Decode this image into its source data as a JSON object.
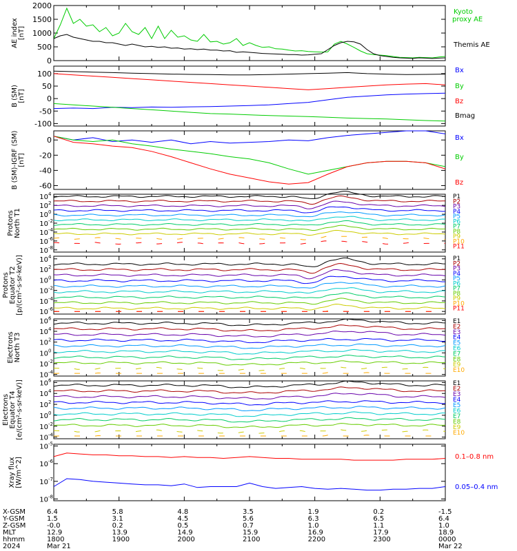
{
  "colors": {
    "black": "#000000",
    "red": "#ff0000",
    "green": "#00cc00",
    "blue": "#0000ff",
    "p_levels": [
      "#000000",
      "#aa0000",
      "#6600aa",
      "#0000ff",
      "#0099ff",
      "#00cccc",
      "#00cc66",
      "#66cc00",
      "#cccc00",
      "#ffaa00",
      "#ff0000"
    ]
  },
  "chart_data": [
    {
      "type": "line",
      "panel": "ae",
      "ylabel": "AE index [nT]",
      "ylim": [
        0,
        2000
      ],
      "yticks": [
        "0",
        "500",
        "1000",
        "1500",
        "2000"
      ],
      "yticks_values": [
        0,
        500,
        1000,
        1500,
        2000
      ],
      "x": [
        18.0,
        18.1,
        18.2,
        18.3,
        18.4,
        18.5,
        18.6,
        18.7,
        18.8,
        18.9,
        19.0,
        19.1,
        19.2,
        19.3,
        19.4,
        19.5,
        19.6,
        19.7,
        19.8,
        19.9,
        20.0,
        20.1,
        20.2,
        20.3,
        20.4,
        20.5,
        20.6,
        20.7,
        20.8,
        20.9,
        21.0,
        21.1,
        21.2,
        21.3,
        21.4,
        21.5,
        21.6,
        21.7,
        21.8,
        21.9,
        22.0,
        22.1,
        22.2,
        22.3,
        22.4,
        22.5,
        22.6,
        22.7,
        22.8,
        22.9,
        23.0,
        23.1,
        23.2,
        23.3,
        23.4,
        23.5,
        23.6,
        23.7,
        23.8,
        23.9,
        24.0
      ],
      "series": [
        {
          "name": "Kyoto proxy AE",
          "color": "#00cc00",
          "values": [
            800,
            1300,
            1900,
            1350,
            1500,
            1250,
            1300,
            1050,
            1200,
            900,
            1000,
            1350,
            1050,
            950,
            1200,
            800,
            1250,
            800,
            1100,
            850,
            900,
            750,
            700,
            950,
            680,
            700,
            600,
            650,
            800,
            550,
            650,
            550,
            480,
            500,
            430,
            420,
            380,
            350,
            360,
            330,
            320,
            310,
            320,
            600,
            700,
            600,
            480,
            350,
            250,
            220,
            200,
            180,
            150,
            120,
            110,
            100,
            120,
            110,
            100,
            130,
            150
          ]
        },
        {
          "name": "Themis AE",
          "color": "#000000",
          "values": [
            800,
            900,
            950,
            850,
            800,
            750,
            700,
            700,
            650,
            650,
            600,
            550,
            600,
            550,
            500,
            520,
            480,
            500,
            450,
            460,
            420,
            430,
            400,
            420,
            380,
            380,
            350,
            360,
            300,
            320,
            300,
            280,
            260,
            250,
            240,
            230,
            220,
            220,
            200,
            210,
            230,
            250,
            400,
            550,
            650,
            700,
            680,
            600,
            400,
            250,
            180,
            150,
            120,
            100,
            90,
            80,
            100,
            90,
            80,
            90,
            100
          ]
        }
      ]
    },
    {
      "type": "line",
      "panel": "b_sm",
      "ylabel": "B (SM) [nT]",
      "ylim": [
        -110,
        130
      ],
      "yticks": [
        "-100",
        "-50",
        "0",
        "50",
        "100"
      ],
      "yticks_values": [
        -100,
        -50,
        0,
        50,
        100
      ],
      "x": [
        18.0,
        18.3,
        18.6,
        18.9,
        19.2,
        19.5,
        19.8,
        20.1,
        20.4,
        20.7,
        21.0,
        21.3,
        21.6,
        21.9,
        22.2,
        22.5,
        22.8,
        23.1,
        23.4,
        23.7,
        24.0
      ],
      "series": [
        {
          "name": "Bx",
          "color": "#0000ff",
          "values": [
            -40,
            -38,
            -40,
            -35,
            -36,
            -34,
            -35,
            -33,
            -32,
            -30,
            -28,
            -25,
            -20,
            -15,
            -5,
            5,
            10,
            15,
            18,
            20,
            22
          ]
        },
        {
          "name": "By",
          "color": "#00cc00",
          "values": [
            -20,
            -25,
            -30,
            -35,
            -40,
            -45,
            -50,
            -55,
            -60,
            -62,
            -65,
            -68,
            -70,
            -72,
            -75,
            -78,
            -80,
            -82,
            -85,
            -88,
            -90
          ]
        },
        {
          "name": "Bz",
          "color": "#ff0000",
          "values": [
            100,
            95,
            90,
            85,
            80,
            75,
            70,
            65,
            60,
            55,
            50,
            45,
            40,
            35,
            40,
            45,
            50,
            55,
            58,
            60,
            55
          ]
        },
        {
          "name": "Bmag",
          "color": "#000000",
          "values": [
            110,
            108,
            106,
            104,
            102,
            100,
            98,
            97,
            96,
            95,
            95,
            96,
            98,
            100,
            102,
            104,
            100,
            98,
            96,
            97,
            98
          ]
        }
      ]
    },
    {
      "type": "line",
      "panel": "b_igrf",
      "ylabel": "B (SM)-IGRF (SM) [nT]",
      "ylim": [
        -65,
        12
      ],
      "yticks": [
        "-60",
        "-40",
        "-20",
        "0"
      ],
      "yticks_values": [
        -60,
        -40,
        -20,
        0
      ],
      "x": [
        18.0,
        18.3,
        18.6,
        18.9,
        19.2,
        19.5,
        19.8,
        20.1,
        20.4,
        20.7,
        21.0,
        21.3,
        21.6,
        21.9,
        22.2,
        22.5,
        22.8,
        23.1,
        23.4,
        23.7,
        24.0
      ],
      "series": [
        {
          "name": "Bx",
          "color": "#0000ff",
          "values": [
            5,
            0,
            3,
            -2,
            0,
            -3,
            0,
            -5,
            -2,
            -4,
            -3,
            -2,
            0,
            -1,
            3,
            6,
            8,
            10,
            12,
            12,
            8
          ]
        },
        {
          "name": "By",
          "color": "#00cc00",
          "values": [
            5,
            0,
            -2,
            0,
            -5,
            -8,
            -12,
            -15,
            -18,
            -22,
            -25,
            -30,
            -38,
            -45,
            -40,
            -35,
            -30,
            -28,
            -28,
            -30,
            -35
          ]
        },
        {
          "name": "Bz",
          "color": "#ff0000",
          "values": [
            5,
            -3,
            -5,
            -8,
            -10,
            -15,
            -22,
            -30,
            -38,
            -45,
            -50,
            -55,
            -58,
            -56,
            -45,
            -35,
            -30,
            -28,
            -28,
            -30,
            -38
          ]
        }
      ]
    }
  ],
  "flux_panels": [
    {
      "id": "p1",
      "label_lines": [
        "Protons",
        "North T1"
      ],
      "ytick_exps": [
        4,
        2,
        0,
        -2,
        -4,
        -6,
        -8
      ],
      "ymax_exp": 4.5,
      "ymin_exp": -8.5,
      "levels": [
        "P1",
        "P2",
        "P3",
        "P4",
        "P5",
        "P6",
        "P7",
        "P8",
        "P9",
        "P10",
        "P11"
      ]
    },
    {
      "id": "p2",
      "label_lines": [
        "Protons",
        "Equator T2",
        "[p/(cm²-s-sr-keV)]"
      ],
      "ytick_exps": [
        4,
        2,
        0,
        -2,
        -4,
        -6
      ],
      "ymax_exp": 4.5,
      "ymin_exp": -6.5,
      "levels": [
        "P1",
        "P2",
        "P3",
        "P4",
        "P5",
        "P6",
        "P7",
        "P8",
        "P9",
        "P10",
        "P11"
      ]
    },
    {
      "id": "e1",
      "label_lines": [
        "Electrons",
        "North T3"
      ],
      "ytick_exps": [
        6,
        4,
        2,
        0,
        -2,
        -4
      ],
      "ymax_exp": 6.3,
      "ymin_exp": -4.3,
      "levels": [
        "E1",
        "E2",
        "E3",
        "E4",
        "E5",
        "E6",
        "E7",
        "E8",
        "E9",
        "E10"
      ]
    },
    {
      "id": "e2",
      "label_lines": [
        "Electrons",
        "Equator T4",
        "[e/(cm²-s-sr-keV)]"
      ],
      "ytick_exps": [
        6,
        4,
        2,
        0,
        -2,
        -4
      ],
      "ymax_exp": 6.3,
      "ymin_exp": -4.3,
      "levels": [
        "E1",
        "E2",
        "E3",
        "E4",
        "E5",
        "E6",
        "E7",
        "E8",
        "E9",
        "E10"
      ]
    }
  ],
  "xray": {
    "label_lines": [
      "Xray flux",
      "[W/m^2]"
    ],
    "ytick_exps": [
      -5,
      -6,
      -7,
      -8
    ],
    "series": [
      {
        "name": "0.1-0.8 nm",
        "color": "#ff0000",
        "x": [
          18.0,
          18.2,
          18.4,
          18.6,
          18.8,
          19.0,
          19.2,
          19.4,
          19.6,
          19.8,
          20.0,
          20.2,
          20.4,
          20.6,
          20.8,
          21.0,
          21.2,
          21.4,
          21.6,
          21.8,
          22.0,
          22.2,
          22.4,
          22.6,
          22.8,
          23.0,
          23.2,
          23.4,
          23.6,
          23.8,
          24.0
        ],
        "exp": [
          -5.6,
          -5.4,
          -5.45,
          -5.5,
          -5.5,
          -5.55,
          -5.55,
          -5.6,
          -5.6,
          -5.65,
          -5.6,
          -5.65,
          -5.65,
          -5.7,
          -5.65,
          -5.6,
          -5.65,
          -5.7,
          -5.7,
          -5.75,
          -5.75,
          -5.75,
          -5.75,
          -5.8,
          -5.8,
          -5.8,
          -5.8,
          -5.75,
          -5.75,
          -5.75,
          -5.7
        ]
      },
      {
        "name": "0.05-0.4 nm",
        "color": "#0000ff",
        "x": [
          18.0,
          18.2,
          18.4,
          18.6,
          18.8,
          19.0,
          19.2,
          19.4,
          19.6,
          19.8,
          20.0,
          20.2,
          20.4,
          20.6,
          20.8,
          21.0,
          21.2,
          21.4,
          21.6,
          21.8,
          22.0,
          22.2,
          22.4,
          22.6,
          22.8,
          23.0,
          23.2,
          23.4,
          23.6,
          23.8,
          24.0
        ],
        "exp": [
          -7.3,
          -6.85,
          -6.9,
          -7.0,
          -7.05,
          -7.1,
          -7.15,
          -7.2,
          -7.2,
          -7.25,
          -7.15,
          -7.35,
          -7.3,
          -7.3,
          -7.3,
          -7.1,
          -7.3,
          -7.4,
          -7.35,
          -7.3,
          -7.4,
          -7.45,
          -7.4,
          -7.45,
          -7.5,
          -7.5,
          -7.45,
          -7.45,
          -7.4,
          -7.4,
          -7.3
        ]
      }
    ]
  },
  "orbit_table": {
    "x_positions": [
      18.0,
      19.0,
      20.0,
      21.0,
      22.0,
      23.0,
      24.0
    ],
    "rows": [
      {
        "label": "X-GSM",
        "values": [
          "6.4",
          "5.8",
          "4.8",
          "3.5",
          "1.9",
          "0.2",
          "-1.5"
        ]
      },
      {
        "label": "Y-GSM",
        "values": [
          "1.5",
          "3.1",
          "4.5",
          "5.6",
          "6.3",
          "6.5",
          "6.4"
        ]
      },
      {
        "label": "Z-GSM",
        "values": [
          "-0.0",
          "0.2",
          "0.5",
          "0.7",
          "1.0",
          "1.1",
          "1.0"
        ]
      },
      {
        "label": "MLT",
        "values": [
          "12.9",
          "13.9",
          "14.9",
          "15.9",
          "16.9",
          "17.9",
          "18.9"
        ]
      },
      {
        "label": "hhmm",
        "values": [
          "1800",
          "1900",
          "2000",
          "2100",
          "2200",
          "2300",
          "0000"
        ]
      },
      {
        "label": "2024",
        "values": [
          "Mar 21",
          "",
          "",
          "",
          "",
          "",
          "Mar 22"
        ]
      }
    ]
  }
}
